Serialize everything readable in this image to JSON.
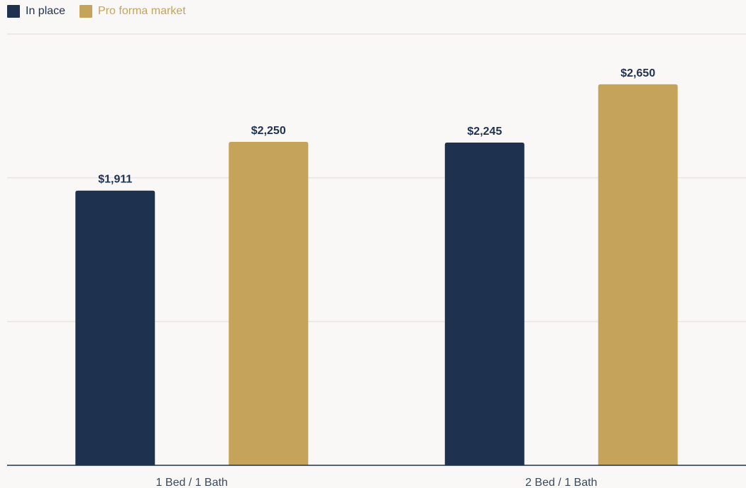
{
  "chart_data": {
    "type": "bar",
    "categories": [
      "1 Bed / 1 Bath",
      "2 Bed / 1 Bath"
    ],
    "series": [
      {
        "name": "In place",
        "color": "#1e3250",
        "values": [
          1911,
          2245
        ],
        "labels": [
          "$1,911",
          "$2,245"
        ]
      },
      {
        "name": "Pro forma market",
        "color": "#c5a35a",
        "values": [
          2250,
          2650
        ],
        "labels": [
          "$2,250",
          "$2,650"
        ]
      }
    ],
    "ylim": [
      0,
      3000
    ],
    "grid": true,
    "legend": "top-left",
    "title": "",
    "xlabel": "",
    "ylabel": ""
  }
}
